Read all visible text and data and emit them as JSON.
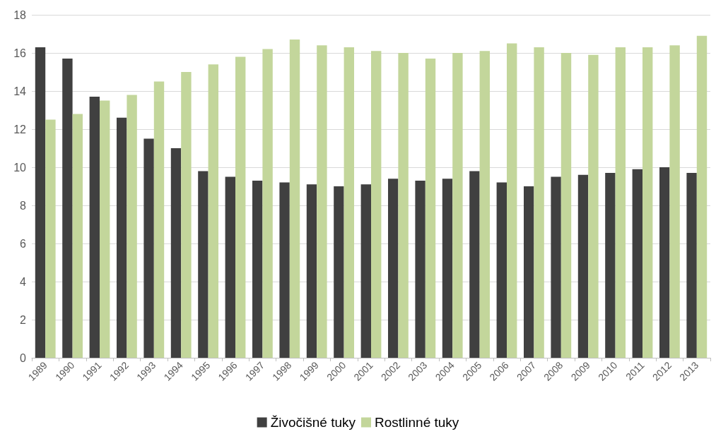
{
  "chart_data": {
    "type": "bar",
    "categories": [
      "1989",
      "1990",
      "1991",
      "1992",
      "1993",
      "1994",
      "1995",
      "1996",
      "1997",
      "1998",
      "1999",
      "2000",
      "2001",
      "2002",
      "2003",
      "2004",
      "2005",
      "2006",
      "2007",
      "2008",
      "2009",
      "2010",
      "2011",
      "2012",
      "2013"
    ],
    "series": [
      {
        "name": "Živočišné tuky",
        "color": "#404040",
        "values": [
          16.3,
          15.7,
          13.7,
          12.6,
          11.5,
          11.0,
          9.8,
          9.5,
          9.3,
          9.2,
          9.1,
          9.0,
          9.1,
          9.4,
          9.3,
          9.4,
          9.8,
          9.2,
          9.0,
          9.5,
          9.6,
          9.7,
          9.9,
          10.0,
          9.7
        ]
      },
      {
        "name": "Rostlinné tuky",
        "color": "#c3d69b",
        "values": [
          12.5,
          12.8,
          13.5,
          13.8,
          14.5,
          15.0,
          15.4,
          15.8,
          16.2,
          16.7,
          16.4,
          16.3,
          16.1,
          16.0,
          15.7,
          16.0,
          16.1,
          16.5,
          16.3,
          16.0,
          15.9,
          16.3,
          16.3,
          16.4,
          16.9
        ]
      }
    ],
    "ylim": [
      0,
      18
    ],
    "yticks": [
      0,
      2,
      4,
      6,
      8,
      10,
      12,
      14,
      16,
      18
    ],
    "grid": "y",
    "legend": "bottom"
  }
}
